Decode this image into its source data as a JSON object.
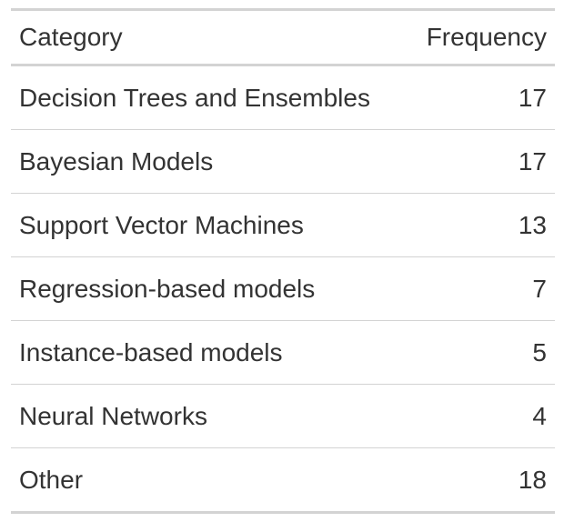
{
  "chart_data": {
    "type": "table",
    "columns": [
      "Category",
      "Frequency"
    ],
    "rows": [
      {
        "category": "Decision Trees and Ensembles",
        "frequency": 17
      },
      {
        "category": "Bayesian Models",
        "frequency": 17
      },
      {
        "category": "Support Vector Machines",
        "frequency": 13
      },
      {
        "category": "Regression-based models",
        "frequency": 7
      },
      {
        "category": "Instance-based models",
        "frequency": 5
      },
      {
        "category": "Neural Networks",
        "frequency": 4
      },
      {
        "category": "Other",
        "frequency": 18
      }
    ]
  },
  "colors": {
    "text": "#333333",
    "rule": "#d3d3d3"
  }
}
